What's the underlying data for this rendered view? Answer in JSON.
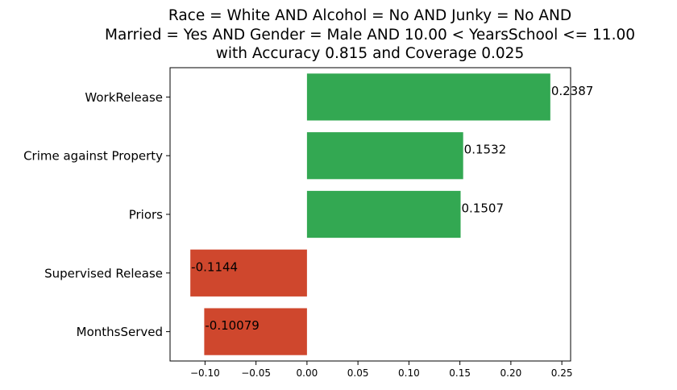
{
  "chart_data": {
    "type": "bar",
    "orientation": "horizontal",
    "title_lines": [
      "Race = White AND Alcohol = No AND Junky = No AND",
      "Married = Yes AND Gender = Male AND 10.00 < YearsSchool <= 11.00",
      "with Accuracy 0.815 and Coverage 0.025"
    ],
    "categories": [
      "WorkRelease",
      "Crime against Property",
      "Priors",
      "Supervised Release",
      "MonthsServed"
    ],
    "values": [
      0.2387,
      0.1532,
      0.1507,
      -0.1144,
      -0.10079
    ],
    "value_labels": [
      "0.2387",
      "0.1532",
      "0.1507",
      "-0.1144",
      "-0.10079"
    ],
    "xticks": [
      -0.1,
      -0.05,
      0.0,
      0.05,
      0.1,
      0.15,
      0.2,
      0.25
    ],
    "xtick_labels": [
      "−0.10",
      "−0.05",
      "0.00",
      "0.05",
      "0.10",
      "0.15",
      "0.20",
      "0.25"
    ],
    "xlim": [
      -0.1343,
      0.2586
    ],
    "xlabel": "",
    "ylabel": "",
    "grid": false,
    "legend": "none",
    "colors": {
      "positive": "#33a852",
      "negative": "#cf472d"
    }
  }
}
